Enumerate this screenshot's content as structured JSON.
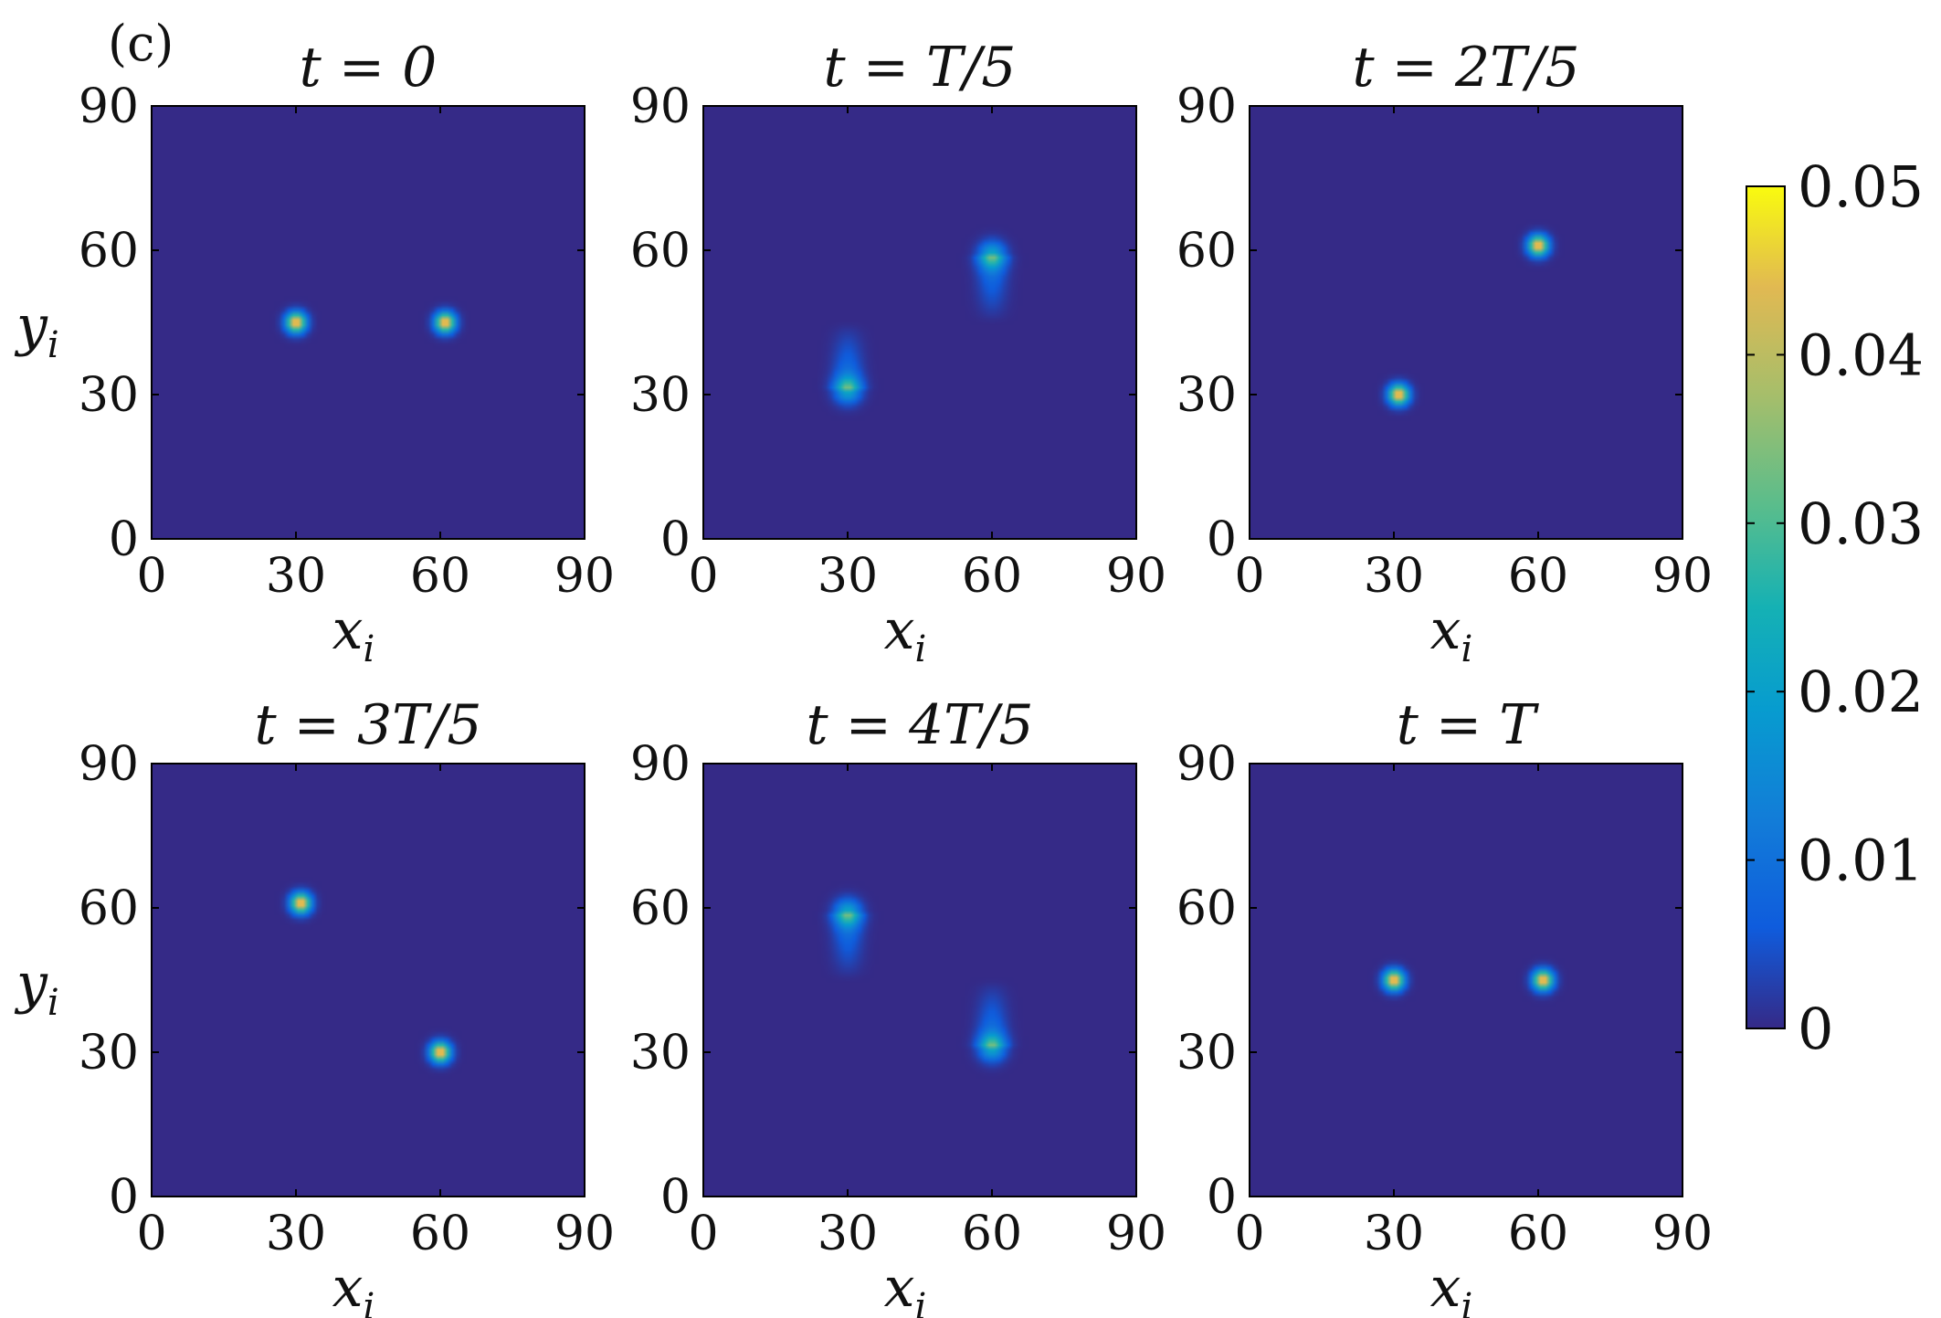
{
  "figure": {
    "panel_tag": "(c)"
  },
  "chart_data": {
    "type": "heatmap",
    "colormap": "parula",
    "colors": {
      "background": "#352a87",
      "low": "#352a87",
      "high": "#f9fb0e"
    },
    "colorbar": {
      "range": [
        0,
        0.05
      ],
      "ticks": [
        "0",
        "0.01",
        "0.02",
        "0.03",
        "0.04",
        "0.05"
      ]
    },
    "axes": {
      "xlabel": "x",
      "xlabel_sub": "i",
      "ylabel": "y",
      "ylabel_sub": "i",
      "xlim": [
        0,
        90
      ],
      "ylim": [
        0,
        90
      ],
      "xticks": [
        "0",
        "30",
        "60",
        "90"
      ],
      "yticks": [
        "0",
        "30",
        "60",
        "90"
      ]
    },
    "panels": [
      {
        "title": "t = 0",
        "spots": [
          {
            "x": 30,
            "y": 45,
            "peak": 0.05,
            "spread_x": 2.0,
            "spread_y": 2.0,
            "tail": 0
          },
          {
            "x": 61,
            "y": 45,
            "peak": 0.05,
            "spread_x": 2.0,
            "spread_y": 2.0,
            "tail": 0
          }
        ]
      },
      {
        "title": "t = T/5",
        "spots": [
          {
            "x": 30,
            "y": 31,
            "peak": 0.023,
            "spread_x": 2.6,
            "spread_y": 2.6,
            "tail": 14,
            "tail_dir": 1
          },
          {
            "x": 60,
            "y": 59,
            "peak": 0.023,
            "spread_x": 2.6,
            "spread_y": 2.6,
            "tail": 14,
            "tail_dir": -1
          }
        ]
      },
      {
        "title": "t = 2T/5",
        "spots": [
          {
            "x": 31,
            "y": 30,
            "peak": 0.05,
            "spread_x": 2.0,
            "spread_y": 2.0,
            "tail": 0
          },
          {
            "x": 60,
            "y": 61,
            "peak": 0.05,
            "spread_x": 2.0,
            "spread_y": 2.0,
            "tail": 0
          }
        ]
      },
      {
        "title": "t = 3T/5",
        "spots": [
          {
            "x": 31,
            "y": 61,
            "peak": 0.05,
            "spread_x": 2.0,
            "spread_y": 2.0,
            "tail": 0
          },
          {
            "x": 60,
            "y": 30,
            "peak": 0.05,
            "spread_x": 2.0,
            "spread_y": 2.0,
            "tail": 0
          }
        ]
      },
      {
        "title": "t = 4T/5",
        "spots": [
          {
            "x": 30,
            "y": 59,
            "peak": 0.023,
            "spread_x": 2.6,
            "spread_y": 2.6,
            "tail": 14,
            "tail_dir": -1
          },
          {
            "x": 60,
            "y": 31,
            "peak": 0.023,
            "spread_x": 2.6,
            "spread_y": 2.6,
            "tail": 14,
            "tail_dir": 1
          }
        ]
      },
      {
        "title": "t = T",
        "spots": [
          {
            "x": 30,
            "y": 45,
            "peak": 0.05,
            "spread_x": 2.0,
            "spread_y": 2.0,
            "tail": 0
          },
          {
            "x": 61,
            "y": 45,
            "peak": 0.05,
            "spread_x": 2.0,
            "spread_y": 2.0,
            "tail": 0
          }
        ]
      }
    ]
  }
}
